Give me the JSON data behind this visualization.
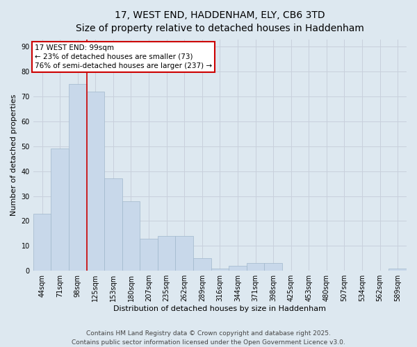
{
  "title_line1": "17, WEST END, HADDENHAM, ELY, CB6 3TD",
  "title_line2": "Size of property relative to detached houses in Haddenham",
  "xlabel": "Distribution of detached houses by size in Haddenham",
  "ylabel": "Number of detached properties",
  "categories": [
    "44sqm",
    "71sqm",
    "98sqm",
    "125sqm",
    "153sqm",
    "180sqm",
    "207sqm",
    "235sqm",
    "262sqm",
    "289sqm",
    "316sqm",
    "344sqm",
    "371sqm",
    "398sqm",
    "425sqm",
    "453sqm",
    "480sqm",
    "507sqm",
    "534sqm",
    "562sqm",
    "589sqm"
  ],
  "values": [
    23,
    49,
    75,
    72,
    37,
    28,
    13,
    14,
    14,
    5,
    1,
    2,
    3,
    3,
    0,
    0,
    0,
    0,
    0,
    0,
    1
  ],
  "bar_color": "#c8d8ea",
  "bar_edgecolor": "#a0b8cc",
  "redline_index": 2,
  "annotation_line1": "17 WEST END: 99sqm",
  "annotation_line2": "← 23% of detached houses are smaller (73)",
  "annotation_line3": "76% of semi-detached houses are larger (237) →",
  "annotation_box_edgecolor": "#cc0000",
  "annotation_box_facecolor": "#ffffff",
  "ylim_max": 93,
  "yticks": [
    0,
    10,
    20,
    30,
    40,
    50,
    60,
    70,
    80,
    90
  ],
  "grid_color": "#c8d0dc",
  "background_color": "#dde8f0",
  "footer_line1": "Contains HM Land Registry data © Crown copyright and database right 2025.",
  "footer_line2": "Contains public sector information licensed under the Open Government Licence v3.0.",
  "title_fontsize": 10,
  "axis_label_fontsize": 8,
  "tick_fontsize": 7,
  "annotation_fontsize": 7.5,
  "footer_fontsize": 6.5
}
